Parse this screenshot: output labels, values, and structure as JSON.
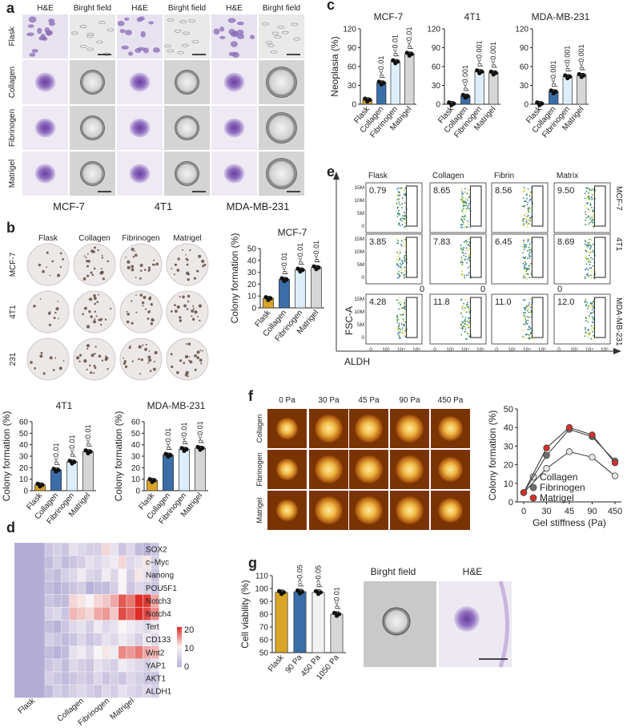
{
  "panel_letters": [
    "a",
    "b",
    "c",
    "d",
    "e",
    "f",
    "g"
  ],
  "colors": {
    "flask": "#d9a527",
    "collagen": "#3b6ea8",
    "fibrinogen": "#ddeefa",
    "matrigel": "#d6d6d6",
    "he_purple": "#8a6bb5",
    "he_bg": "#dcd3ec",
    "bf_bg": "#d4d4d4",
    "colony_bg": "#ece8e7",
    "colony_dot": "#5a4438",
    "agar": "#f0c35a",
    "agar_edge": "#6a2a05",
    "heat_low": "#b9b2d8",
    "heat_high": "#de2d26",
    "gate": "#222222"
  },
  "panel_a": {
    "cols": [
      "H&E",
      "Birght field",
      "H&E",
      "Birght field",
      "H&E",
      "Birght field"
    ],
    "rows": [
      "Flask",
      "Collagen",
      "Fibrinogen",
      "Matrigel"
    ],
    "cells": [
      "MCF-7",
      "4T1",
      "MDA-MB-231"
    ]
  },
  "panel_b": {
    "cols": [
      "Flask",
      "Collagen",
      "Fibrinogen",
      "Matrigel"
    ],
    "rows": [
      "MCF-7",
      "4T1",
      "231"
    ]
  },
  "panel_c_bars": [
    {
      "title": "MCF-7",
      "ylabel": "Neoplasia (%)",
      "ylim": [
        0,
        120
      ],
      "ticks": [
        "0",
        "30",
        "60",
        "90",
        "120"
      ],
      "categories": [
        "Flask",
        "Collagen",
        "Fibrinogen",
        "Matrigel"
      ],
      "values": [
        7,
        34,
        68,
        80
      ],
      "pvalues": [
        "",
        "p<0.01",
        "p<0.01",
        "p<0.01"
      ]
    },
    {
      "title": "4T1",
      "ylabel": "",
      "ylim": [
        0,
        120
      ],
      "ticks": [
        "0",
        "30",
        "60",
        "90",
        "120"
      ],
      "categories": [
        "Flask",
        "Collagen",
        "Fibrinogen",
        "Matrigel"
      ],
      "values": [
        1,
        13,
        52,
        50
      ],
      "pvalues": [
        "",
        "p<0.001",
        "p<0.001",
        "p<0.001"
      ]
    },
    {
      "title": "MDA-MB-231",
      "ylabel": "",
      "ylim": [
        0,
        120
      ],
      "ticks": [
        "0",
        "30",
        "60",
        "90",
        "120"
      ],
      "categories": [
        "Flask",
        "Collagen",
        "Fibrinogen",
        "Matrigel"
      ],
      "values": [
        1,
        20,
        44,
        46
      ],
      "pvalues": [
        "",
        "p<0.001",
        "p<0.001",
        "p<0.001"
      ]
    }
  ],
  "panel_b_bars": [
    {
      "title": "MCF-7",
      "ylabel": "Colony formation (%)",
      "ylim": [
        0,
        50
      ],
      "ticks": [
        "0",
        "10",
        "20",
        "30",
        "40",
        "50"
      ],
      "categories": [
        "Flask",
        "Collagen",
        "Fibrinogen",
        "Matrigel"
      ],
      "values": [
        8,
        24,
        32,
        34
      ],
      "pvalues": [
        "",
        "p<0.01",
        "p<0.01",
        "p<0.01"
      ]
    },
    {
      "title": "4T1",
      "ylabel": "Colony formation (%)",
      "ylim": [
        0,
        60
      ],
      "ticks": [
        "0",
        "10",
        "20",
        "30",
        "40",
        "50",
        "60"
      ],
      "categories": [
        "Flask",
        "Collagen",
        "Fibrinogen",
        "Matrigel"
      ],
      "values": [
        5,
        18,
        25,
        34
      ],
      "pvalues": [
        "",
        "p<0.01",
        "p<0.01",
        "p<0.01"
      ]
    },
    {
      "title": "MDA-MB-231",
      "ylabel": "Colony formation (%)",
      "ylim": [
        0,
        60
      ],
      "ticks": [
        "0",
        "10",
        "20",
        "30",
        "40",
        "50",
        "60"
      ],
      "categories": [
        "Flask",
        "Collagen",
        "Fibrinogen",
        "Matrigel"
      ],
      "values": [
        9,
        31,
        36,
        37
      ],
      "pvalues": [
        "",
        "p<0.01",
        "p<0.01",
        "p<0.01"
      ]
    }
  ],
  "panel_d": {
    "genes": [
      "SOX2",
      "c−Myc",
      "Nanong",
      "POU5F1",
      "Notch3",
      "Notch4",
      "Tert",
      "CD133",
      "Wnt2",
      "YAP1",
      "AKT1",
      "ALDH1"
    ],
    "groups": [
      "Flask",
      "Collagen",
      "Fibrinogen",
      "Matrigel"
    ],
    "legend_ticks": [
      "20",
      "10",
      "0"
    ],
    "matrix": [
      [
        0,
        2,
        3,
        2,
        5,
        4,
        3,
        3,
        9,
        5,
        2,
        4,
        1,
        0,
        2
      ],
      [
        0,
        1,
        3,
        1,
        2,
        3,
        5,
        4,
        5,
        6,
        9,
        4,
        5,
        8,
        3
      ],
      [
        0,
        2,
        1,
        3,
        4,
        6,
        4,
        3,
        6,
        4,
        7,
        3,
        8,
        5,
        2
      ],
      [
        0,
        1,
        0,
        1,
        2,
        3,
        0,
        1,
        1,
        3,
        7,
        2,
        4,
        3,
        2
      ],
      [
        0,
        2,
        1,
        1,
        9,
        8,
        7,
        9,
        10,
        12,
        17,
        15,
        20,
        19,
        12
      ],
      [
        0,
        3,
        4,
        2,
        11,
        10,
        9,
        12,
        13,
        10,
        18,
        16,
        20,
        18,
        14
      ],
      [
        0,
        1,
        0,
        2,
        4,
        5,
        3,
        6,
        4,
        5,
        7,
        6,
        5,
        4,
        6
      ],
      [
        0,
        3,
        2,
        1,
        2,
        4,
        2,
        3,
        5,
        4,
        6,
        5,
        3,
        6,
        4
      ],
      [
        0,
        1,
        0,
        1,
        5,
        6,
        4,
        7,
        8,
        6,
        14,
        13,
        15,
        12,
        11
      ],
      [
        0,
        2,
        3,
        1,
        4,
        3,
        2,
        5,
        4,
        3,
        6,
        5,
        4,
        3,
        5
      ],
      [
        0,
        3,
        2,
        1,
        2,
        3,
        2,
        4,
        2,
        3,
        2,
        4,
        3,
        2,
        2
      ],
      [
        0,
        1,
        3,
        2,
        3,
        4,
        3,
        2,
        4,
        3,
        5,
        4,
        3,
        4,
        3
      ]
    ]
  },
  "panel_e": {
    "cols": [
      "Flask",
      "Collagen",
      "Fibrin",
      "Matrix"
    ],
    "rows": [
      "MCF-7",
      "4T1",
      "MDA-MB-231"
    ],
    "values": [
      [
        "0.79",
        "8.65",
        "8.56",
        "9.50"
      ],
      [
        "3.85",
        "7.83",
        "6.45",
        "8.69"
      ],
      [
        "4.28",
        "11.8",
        "11.0",
        "12.0"
      ]
    ],
    "yticks": [
      "15M",
      "10M",
      "5M",
      "0"
    ],
    "xticks": [
      "0",
      "10²",
      "10⁴",
      "10⁶"
    ],
    "xlabel": "ALDH",
    "ylabel": "FSC-A",
    "stray": "0"
  },
  "panel_f": {
    "cols": [
      "0 Pa",
      "30 Pa",
      "45 Pa",
      "90 Pa",
      "450 Pa"
    ],
    "rows": [
      "Collagen",
      "Fibrinogen",
      "Matrigel"
    ]
  },
  "panel_f_line": {
    "type": "line",
    "x": [
      "0",
      "30",
      "45",
      "90",
      "450"
    ],
    "ylabel": "Colony formation (%)",
    "xlabel": "Gel stiffness (Pa)",
    "ylim": [
      0,
      50
    ],
    "yticks": [
      "0",
      "10",
      "20",
      "30",
      "40",
      "50"
    ],
    "series": [
      {
        "name": "Collagen",
        "values": [
          5,
          18,
          27,
          24,
          14
        ],
        "color": "#e4e4e4"
      },
      {
        "name": "Fibrinogen",
        "values": [
          5,
          25,
          39,
          35,
          22
        ],
        "color": "#6f6f6f"
      },
      {
        "name": "Matrigel",
        "values": [
          5,
          29,
          40,
          36,
          21
        ],
        "color": "#d4302a"
      }
    ]
  },
  "panel_g_bars": {
    "ylabel": "Cell viability (%)",
    "ylim": [
      50,
      110
    ],
    "ticks": [
      "50",
      "60",
      "70",
      "80",
      "90",
      "100",
      "110"
    ],
    "categories": [
      "Flask",
      "90 Pa",
      "450 Pa",
      "1050 Pa"
    ],
    "values": [
      97,
      97.5,
      97,
      80
    ],
    "pvalues": [
      "",
      "p>0.05",
      "p>0.05",
      "p<0.01"
    ]
  },
  "panel_g_images": [
    "Birght field",
    "H&E"
  ]
}
